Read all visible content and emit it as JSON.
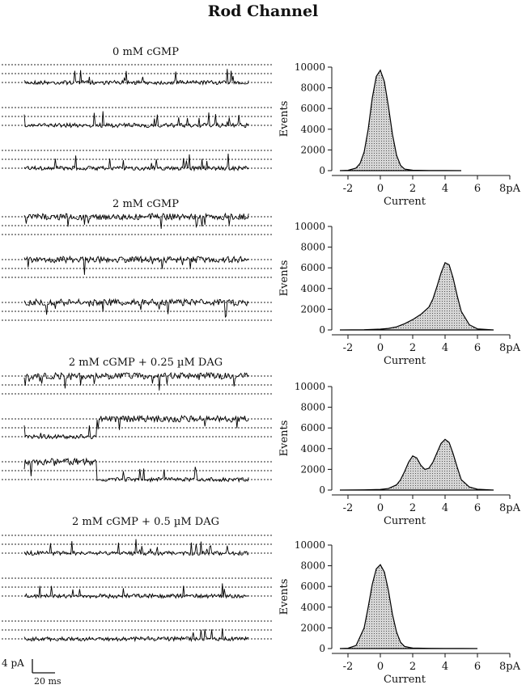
{
  "figure": {
    "title": "Rod Channel",
    "scale_bar": {
      "current_label": "4 pA",
      "time_label": "20 ms"
    }
  },
  "chart_data": [
    {
      "type": "area",
      "condition": "0 mM cGMP",
      "xlabel": "Current",
      "ylabel": "Events",
      "xlim": [
        -3,
        8
      ],
      "ylim": [
        0,
        10000
      ],
      "xticks": [
        "-2",
        "0",
        "2",
        "4",
        "6",
        "8pA"
      ],
      "yticks": [
        "0",
        "2000",
        "4000",
        "6000",
        "8000",
        "10000"
      ],
      "x": [
        -2.5,
        -2,
        -1.5,
        -1.25,
        -1,
        -0.75,
        -0.5,
        -0.25,
        0,
        0.25,
        0.5,
        0.75,
        1,
        1.25,
        1.5,
        2,
        3,
        4,
        5
      ],
      "y": [
        0,
        30,
        250,
        700,
        1800,
        4000,
        7000,
        9100,
        9700,
        8600,
        6200,
        3500,
        1500,
        500,
        150,
        40,
        15,
        5,
        0
      ]
    },
    {
      "type": "area",
      "condition": "2 mM cGMP",
      "xlabel": "Current",
      "ylabel": "Events",
      "xlim": [
        -3,
        8
      ],
      "ylim": [
        0,
        10000
      ],
      "xticks": [
        "-2",
        "0",
        "2",
        "4",
        "6",
        "8pA"
      ],
      "yticks": [
        "0",
        "2000",
        "4000",
        "6000",
        "8000",
        "10000"
      ],
      "x": [
        -2.5,
        -1,
        0,
        0.5,
        1,
        1.5,
        2,
        2.5,
        3,
        3.25,
        3.5,
        3.75,
        4,
        4.25,
        4.5,
        4.75,
        5,
        5.5,
        6,
        7
      ],
      "y": [
        0,
        20,
        80,
        150,
        300,
        600,
        1000,
        1500,
        2200,
        3000,
        4200,
        5500,
        6500,
        6300,
        5000,
        3300,
        1800,
        500,
        100,
        0
      ]
    },
    {
      "type": "area",
      "condition": "2 mM cGMP + 0.25 µM DAG",
      "xlabel": "Current",
      "ylabel": "Events",
      "xlim": [
        -3,
        8
      ],
      "ylim": [
        0,
        10000
      ],
      "xticks": [
        "-2",
        "0",
        "2",
        "4",
        "6",
        "8pA"
      ],
      "yticks": [
        "0",
        "2000",
        "4000",
        "6000",
        "8000",
        "10000"
      ],
      "x": [
        -2.5,
        -1,
        0,
        0.5,
        1,
        1.25,
        1.5,
        1.75,
        2,
        2.25,
        2.5,
        2.75,
        3,
        3.25,
        3.5,
        3.75,
        4,
        4.25,
        4.5,
        4.75,
        5,
        5.5,
        6,
        7
      ],
      "y": [
        0,
        20,
        60,
        150,
        500,
        1000,
        1800,
        2700,
        3300,
        3100,
        2400,
        2000,
        2100,
        2700,
        3600,
        4500,
        4900,
        4600,
        3500,
        2200,
        1000,
        300,
        80,
        0
      ]
    },
    {
      "type": "area",
      "condition": "2 mM cGMP + 0.5 µM DAG",
      "xlabel": "Current",
      "ylabel": "Events",
      "xlim": [
        -3,
        8
      ],
      "ylim": [
        0,
        10000
      ],
      "xticks": [
        "-2",
        "0",
        "2",
        "4",
        "6",
        "8pA"
      ],
      "yticks": [
        "0",
        "2000",
        "4000",
        "6000",
        "8000",
        "10000"
      ],
      "x": [
        -2.5,
        -2,
        -1.5,
        -1,
        -0.75,
        -0.5,
        -0.25,
        0,
        0.25,
        0.5,
        0.75,
        1,
        1.25,
        1.5,
        2,
        3,
        4,
        5,
        6
      ],
      "y": [
        0,
        30,
        300,
        2000,
        4000,
        6200,
        7700,
        8100,
        7400,
        5600,
        3300,
        1600,
        600,
        200,
        50,
        20,
        10,
        5,
        0
      ]
    }
  ]
}
